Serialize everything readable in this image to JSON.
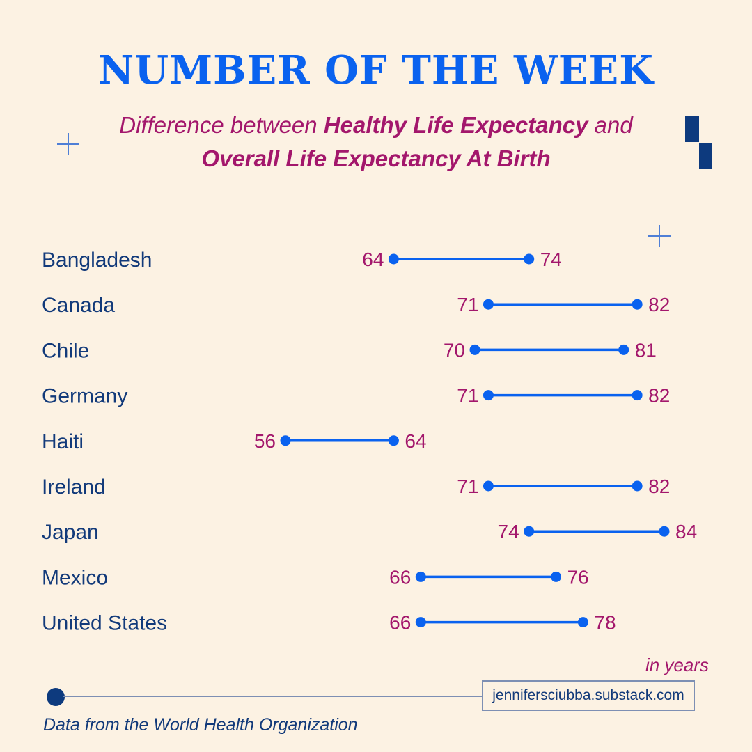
{
  "header": {
    "headline": "NUMBER OF THE WEEK",
    "subtitle_pre": "Difference between ",
    "subtitle_bold1": "Healthy Life Expectancy",
    "subtitle_mid": " and",
    "subtitle_bold2": "Overall Life Expectancy At Birth"
  },
  "chart_data": {
    "type": "dumbbell",
    "title": "Difference between Healthy Life Expectancy and Overall Life Expectancy At Birth",
    "unit": "in years",
    "categories": [
      "Bangladesh",
      "Canada",
      "Chile",
      "Germany",
      "Haiti",
      "Ireland",
      "Japan",
      "Mexico",
      "United States"
    ],
    "series": [
      {
        "name": "Healthy Life Expectancy",
        "values": [
          64,
          71,
          70,
          71,
          56,
          71,
          74,
          66,
          66
        ]
      },
      {
        "name": "Overall Life Expectancy At Birth",
        "values": [
          74,
          82,
          81,
          82,
          64,
          82,
          84,
          76,
          78
        ]
      }
    ],
    "xlim": [
      50,
      86
    ],
    "grid": false,
    "legend": "none"
  },
  "footer": {
    "unit_label": "in years",
    "url": "jennifersciubba.substack.com",
    "source": "Data from the World Health Organization"
  },
  "colors": {
    "headline": "#0a62ef",
    "accent_text": "#a3176c",
    "dot_line": "#0a62ef",
    "country_text": "#123a7a",
    "background": "#fcf2e3",
    "dark_block": "#0d3a7e"
  }
}
